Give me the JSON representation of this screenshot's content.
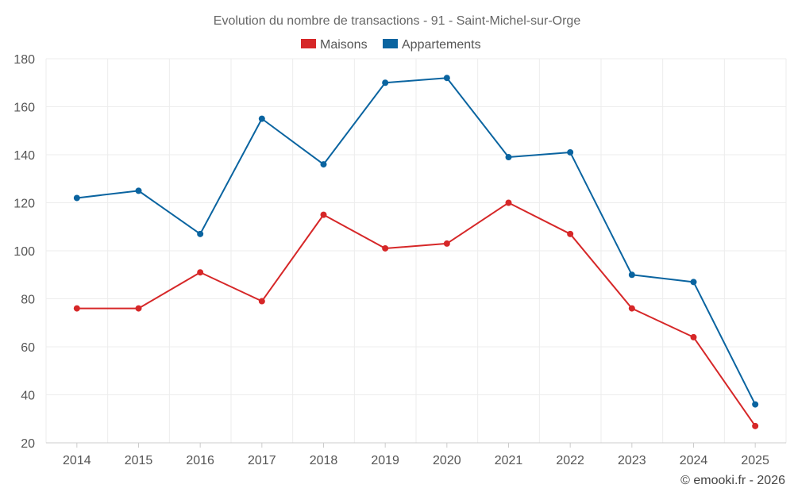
{
  "chart_data": {
    "type": "line",
    "title": "Evolution du nombre de transactions - 91 - Saint-Michel-sur-Orge",
    "xlabel": "",
    "ylabel": "",
    "categories": [
      "2014",
      "2015",
      "2016",
      "2017",
      "2018",
      "2019",
      "2020",
      "2021",
      "2022",
      "2023",
      "2024",
      "2025"
    ],
    "series": [
      {
        "name": "Maisons",
        "color": "#d62728",
        "values": [
          76,
          76,
          91,
          79,
          115,
          101,
          103,
          120,
          107,
          76,
          64,
          27
        ]
      },
      {
        "name": "Appartements",
        "color": "#0a64a0",
        "values": [
          122,
          125,
          107,
          155,
          136,
          170,
          172,
          139,
          141,
          90,
          87,
          36
        ]
      }
    ],
    "ylim": [
      20,
      180
    ],
    "yticks": [
      20,
      40,
      60,
      80,
      100,
      120,
      140,
      160,
      180
    ],
    "legend": "top-center",
    "grid": true
  },
  "credit": "© emooki.fr - 2026"
}
